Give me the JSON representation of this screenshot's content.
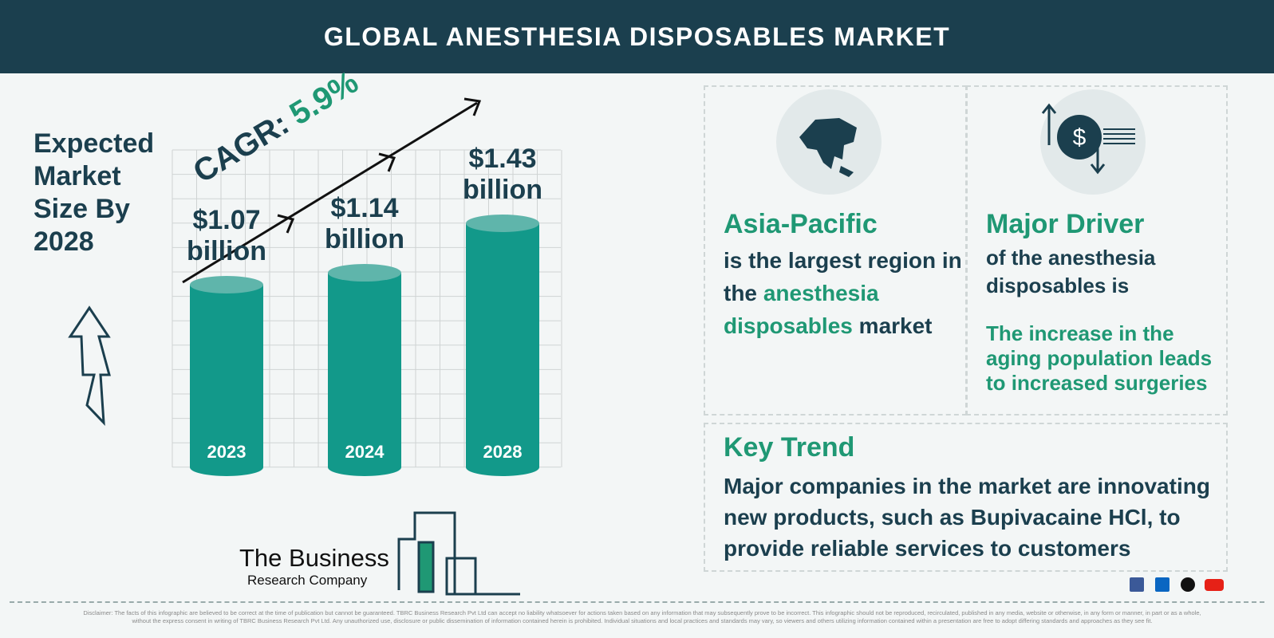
{
  "header": {
    "title": "GLOBAL ANESTHESIA DISPOSABLES MARKET"
  },
  "chart_data": {
    "type": "bar",
    "title": "Expected Market Size By 2028",
    "cagr_label": "CAGR:",
    "cagr_value": "5.9%",
    "categories": [
      "2023",
      "2024",
      "2028"
    ],
    "values": [
      1.07,
      1.14,
      1.43
    ],
    "value_labels": [
      "$1.07 billion",
      "$1.14 billion",
      "$1.43 billion"
    ],
    "color": "#12998a"
  },
  "region": {
    "title": "Asia-Pacific",
    "text_before": "is the largest region in the",
    "highlight": "anesthesia disposables",
    "text_after": "market"
  },
  "driver": {
    "title": "Major Driver",
    "text": "of the anesthesia disposables is",
    "highlight": "The increase in the aging population leads to increased surgeries"
  },
  "trend": {
    "title": "Key Trend",
    "text": "Major companies in the market are innovating new products, such as Bupivacaine HCl, to provide reliable services to customers"
  },
  "logo": {
    "line1": "The Business",
    "line2": "Research Company"
  },
  "disclaimer": "Disclaimer: The facts of this infographic are believed to be correct at the time of publication but cannot be guaranteed. TBRC Business Research Pvt Ltd can accept no liability whatsoever for actions taken based on any information that may subsequently prove to be incorrect. This infographic should not be reproduced, recirculated, published in any media, website or otherwise, in any form or manner, in part or as a whole, without the express consent in writing of TBRC Business Research Pvt Ltd. Any unauthorized use, disclosure or public dissemination of information contained herein is prohibited. Individual situations and local practices and standards may vary, so viewers and others utilizing information contained within a presentation are free to adopt differing standards and approaches as they see fit."
}
